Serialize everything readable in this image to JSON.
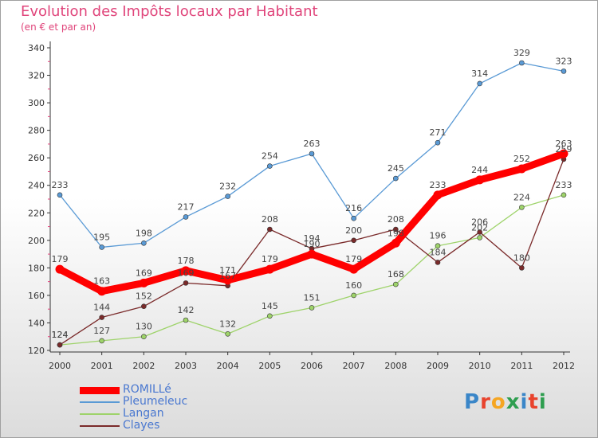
{
  "title": "Evolution des Impôts locaux par Habitant",
  "subtitle": "(en € et par an)",
  "logo_text": "Proxiti",
  "chart_data": {
    "type": "line",
    "title": "Evolution des Impôts locaux par Habitant",
    "subtitle": "(en € et par an)",
    "x": [
      "2000",
      "2001",
      "2002",
      "2003",
      "2004",
      "2005",
      "2006",
      "2007",
      "2008",
      "2009",
      "2010",
      "2011",
      "2012"
    ],
    "ylim": [
      120,
      340
    ],
    "yticks": [
      120,
      140,
      160,
      180,
      200,
      220,
      240,
      260,
      280,
      300,
      320,
      340
    ],
    "grid": false,
    "legend_position": "bottom-left",
    "series": [
      {
        "name": "ROMILLé",
        "color": "#ff0000",
        "values": [
          179,
          163,
          169,
          178,
          171,
          179,
          190,
          179,
          198,
          233,
          244,
          252,
          263
        ]
      },
      {
        "name": "Pleumeleuc",
        "color": "#5a9ad5",
        "values": [
          233,
          195,
          198,
          217,
          232,
          254,
          263,
          216,
          245,
          271,
          314,
          329,
          323
        ]
      },
      {
        "name": "Langan",
        "color": "#9ed36a",
        "values": [
          124,
          127,
          130,
          142,
          132,
          145,
          151,
          160,
          168,
          196,
          202,
          224,
          233
        ]
      },
      {
        "name": "Clayes",
        "color": "#7a2a2a",
        "values": [
          124,
          144,
          152,
          169,
          167,
          208,
          194,
          200,
          208,
          184,
          206,
          180,
          259
        ]
      }
    ],
    "data_labels": [
      {
        "series": 0,
        "labels": [
          "179",
          "163",
          "169",
          "178",
          "171",
          "179",
          "190",
          "179",
          "198",
          "233",
          "244",
          "252",
          "263"
        ]
      },
      {
        "series": 1,
        "labels": [
          "233",
          "195",
          "198",
          "217",
          "232",
          "254",
          "263",
          "216",
          "245",
          "271",
          "314",
          "329",
          "323"
        ]
      },
      {
        "series": 2,
        "labels": [
          "124",
          "127",
          "130",
          "142",
          "132",
          "145",
          "151",
          "160",
          "168",
          "196",
          "202",
          "224",
          "233"
        ]
      },
      {
        "series": 3,
        "labels": [
          "124",
          "144",
          "152",
          "169",
          "167",
          "208",
          "194",
          "200",
          "208",
          "184",
          "206",
          "180",
          "259"
        ]
      }
    ]
  }
}
